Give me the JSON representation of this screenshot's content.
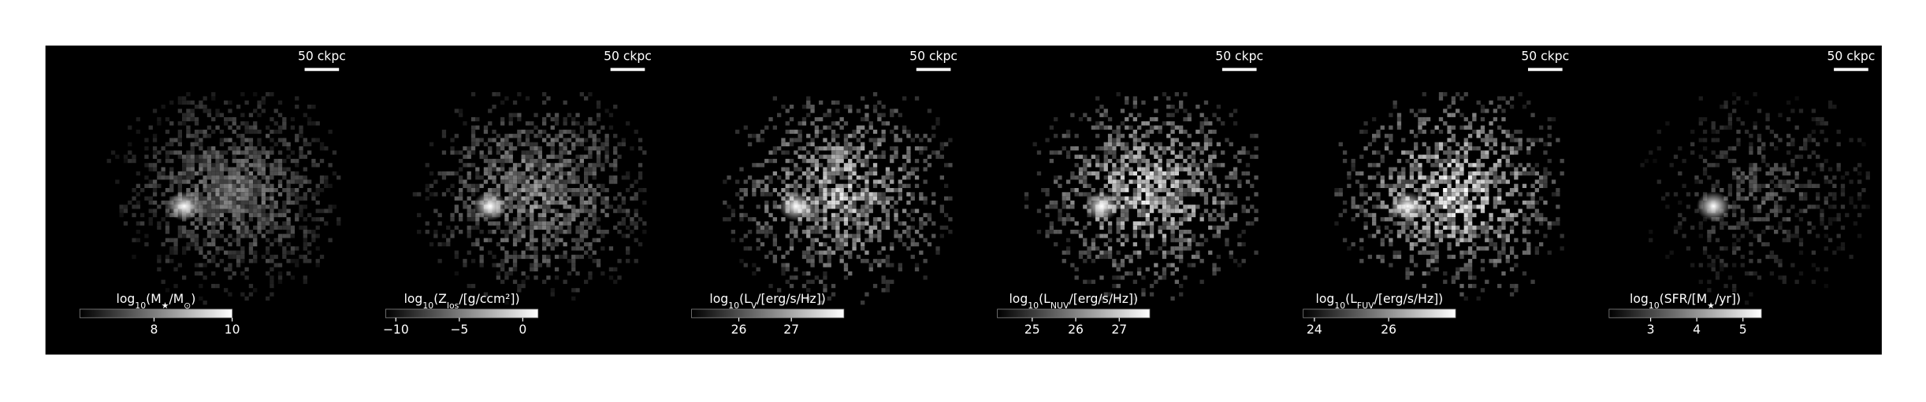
{
  "panels": [
    {
      "scale_bar": "50 ckpc",
      "colorbar": {
        "label": [
          "log",
          "10",
          "(M",
          "★",
          "/M",
          "⊙",
          ")"
        ],
        "clim": [
          6.1,
          10
        ],
        "ticks": [
          8,
          10
        ]
      }
    },
    {
      "scale_bar": "50 ckpc",
      "colorbar": {
        "label": [
          "log",
          "10",
          "(Z",
          "los",
          "/[g/ccm²])"
        ],
        "clim": [
          -10.8,
          1.2
        ],
        "ticks": [
          {
            "value": -10,
            "label": "−10"
          },
          {
            "value": -5,
            "label": "−5"
          },
          0
        ]
      }
    },
    {
      "scale_bar": "50 ckpc",
      "colorbar": {
        "label": [
          "log",
          "10",
          "(L",
          "V",
          "/[erg/s/Hz])"
        ],
        "clim": [
          25.1,
          28.0
        ],
        "ticks": [
          26,
          27
        ]
      }
    },
    {
      "scale_bar": "50 ckpc",
      "colorbar": {
        "label": [
          "log",
          "10",
          "(L",
          "NUV",
          "/[erg/s/Hz])"
        ],
        "clim": [
          24.2,
          27.7
        ],
        "ticks": [
          25,
          26,
          27
        ]
      }
    },
    {
      "scale_bar": "50 ckpc",
      "colorbar": {
        "label": [
          "log",
          "10",
          "(L",
          "FUV",
          "/[erg/s/Hz])"
        ],
        "clim": [
          23.7,
          27.8
        ],
        "ticks": [
          24,
          26
        ]
      }
    },
    {
      "scale_bar": "50 ckpc",
      "colorbar": {
        "label": [
          "log",
          "10",
          "(SFR/[M",
          "★",
          "/yr])"
        ],
        "clim": [
          2.1,
          5.4
        ],
        "ticks": [
          3,
          4,
          5
        ]
      }
    }
  ]
}
